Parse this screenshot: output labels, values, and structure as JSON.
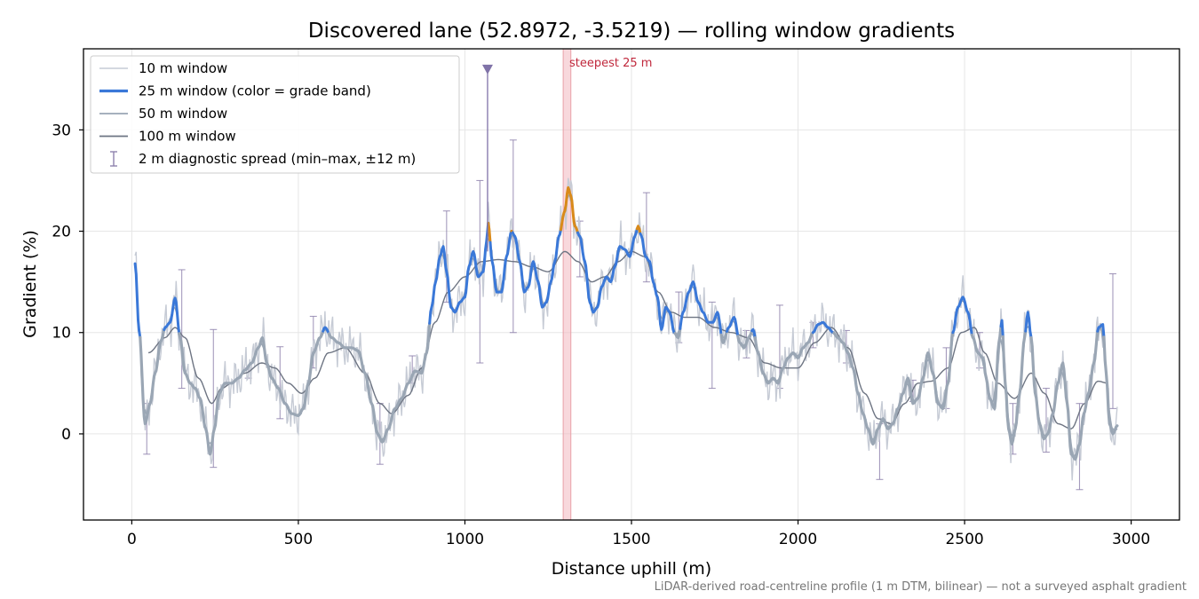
{
  "chart_data": {
    "type": "line",
    "title": "Discovered lane (52.8972, -3.5219) — rolling window gradients",
    "xlabel": "Distance uphill (m)",
    "ylabel": "Gradient (%)",
    "xlim": [
      -145,
      3145
    ],
    "ylim": [
      -8.5,
      38
    ],
    "x_ticks": [
      0,
      500,
      1000,
      1500,
      2000,
      2500,
      3000
    ],
    "x_tick_labels": [
      "0",
      "500",
      "1000",
      "1500",
      "2000",
      "2500",
      "3000"
    ],
    "y_ticks": [
      0,
      10,
      20,
      30
    ],
    "y_tick_labels": [
      "0",
      "10",
      "20",
      "30"
    ],
    "grid": true,
    "legend_position": "top-left",
    "legend": [
      {
        "label": "10 m window",
        "color": "#c6cbd5",
        "style": "line-thin"
      },
      {
        "label": "25 m window (color = grade band)",
        "color": "#3a78d8",
        "style": "line-thick"
      },
      {
        "label": "50 m window",
        "color": "#9aa6b4",
        "style": "line"
      },
      {
        "label": "100 m window",
        "color": "#6e7583",
        "style": "line"
      },
      {
        "label": "2 m diagnostic spread (min–max, ±12 m)",
        "color": "#8e82ad",
        "style": "errorbar"
      }
    ],
    "grade_band_colors": {
      "low": "#9aa6b4",
      "mid": "#3a78d8",
      "steep": "#d98a1a"
    },
    "grade_band_thresholds": [
      10,
      20
    ],
    "steepest_25m": {
      "label": "steepest 25 m",
      "x_start": 1295,
      "x_end": 1318,
      "color": "#f2b8bf"
    },
    "peak_marker": {
      "x": 1068,
      "y": 36,
      "color": "#8073a8"
    },
    "profile_25m": [
      [
        10,
        16.8
      ],
      [
        22,
        10.2
      ],
      [
        40,
        1.0
      ],
      [
        55,
        3.0
      ],
      [
        70,
        6.0
      ],
      [
        88,
        9.2
      ],
      [
        100,
        10.5
      ],
      [
        115,
        11.0
      ],
      [
        130,
        13.4
      ],
      [
        145,
        9.5
      ],
      [
        160,
        6.0
      ],
      [
        175,
        5.0
      ],
      [
        190,
        4.5
      ],
      [
        205,
        3.5
      ],
      [
        222,
        0.5
      ],
      [
        235,
        -2.0
      ],
      [
        248,
        0.5
      ],
      [
        262,
        4.0
      ],
      [
        280,
        5.0
      ],
      [
        300,
        5.0
      ],
      [
        320,
        5.5
      ],
      [
        340,
        6.3
      ],
      [
        360,
        7.0
      ],
      [
        380,
        8.5
      ],
      [
        392,
        9.5
      ],
      [
        405,
        7.0
      ],
      [
        420,
        5.5
      ],
      [
        440,
        4.5
      ],
      [
        460,
        3.0
      ],
      [
        480,
        2.0
      ],
      [
        500,
        1.8
      ],
      [
        515,
        2.5
      ],
      [
        530,
        5.0
      ],
      [
        545,
        8.0
      ],
      [
        565,
        9.5
      ],
      [
        580,
        10.5
      ],
      [
        600,
        9.5
      ],
      [
        620,
        9.0
      ],
      [
        640,
        8.5
      ],
      [
        660,
        8.5
      ],
      [
        680,
        8.2
      ],
      [
        700,
        6.0
      ],
      [
        720,
        3.0
      ],
      [
        738,
        0.0
      ],
      [
        752,
        -0.8
      ],
      [
        770,
        0.5
      ],
      [
        790,
        2.5
      ],
      [
        810,
        3.5
      ],
      [
        830,
        5.0
      ],
      [
        850,
        6.2
      ],
      [
        870,
        6.0
      ],
      [
        885,
        8.0
      ],
      [
        900,
        12.5
      ],
      [
        912,
        15.0
      ],
      [
        925,
        17.5
      ],
      [
        935,
        18.5
      ],
      [
        945,
        16.0
      ],
      [
        958,
        12.5
      ],
      [
        970,
        12.0
      ],
      [
        985,
        13.0
      ],
      [
        1000,
        13.5
      ],
      [
        1012,
        16.5
      ],
      [
        1025,
        18.0
      ],
      [
        1040,
        15.5
      ],
      [
        1055,
        16.0
      ],
      [
        1065,
        19.0
      ],
      [
        1070,
        20.8
      ],
      [
        1082,
        17.0
      ],
      [
        1095,
        14.0
      ],
      [
        1110,
        14.0
      ],
      [
        1125,
        17.5
      ],
      [
        1140,
        20.0
      ],
      [
        1150,
        19.5
      ],
      [
        1165,
        17.0
      ],
      [
        1178,
        14.0
      ],
      [
        1190,
        14.5
      ],
      [
        1205,
        17.0
      ],
      [
        1220,
        15.0
      ],
      [
        1232,
        12.5
      ],
      [
        1245,
        13.0
      ],
      [
        1258,
        15.0
      ],
      [
        1270,
        17.0
      ],
      [
        1282,
        19.5
      ],
      [
        1300,
        22.0
      ],
      [
        1310,
        24.3
      ],
      [
        1318,
        23.5
      ],
      [
        1330,
        20.5
      ],
      [
        1345,
        19.5
      ],
      [
        1360,
        17.0
      ],
      [
        1375,
        13.0
      ],
      [
        1385,
        12.0
      ],
      [
        1398,
        12.5
      ],
      [
        1410,
        14.5
      ],
      [
        1425,
        15.5
      ],
      [
        1438,
        15.0
      ],
      [
        1450,
        16.5
      ],
      [
        1465,
        18.5
      ],
      [
        1480,
        18.2
      ],
      [
        1495,
        17.5
      ],
      [
        1510,
        19.5
      ],
      [
        1520,
        20.5
      ],
      [
        1530,
        19.5
      ],
      [
        1542,
        17.5
      ],
      [
        1555,
        17.0
      ],
      [
        1565,
        15.0
      ],
      [
        1578,
        13.5
      ],
      [
        1590,
        10.3
      ],
      [
        1603,
        12.5
      ],
      [
        1615,
        12.0
      ],
      [
        1628,
        10.0
      ],
      [
        1640,
        9.5
      ],
      [
        1655,
        12.0
      ],
      [
        1672,
        14.0
      ],
      [
        1685,
        15.0
      ],
      [
        1700,
        13.0
      ],
      [
        1715,
        12.0
      ],
      [
        1730,
        11.0
      ],
      [
        1745,
        11.0
      ],
      [
        1758,
        12.0
      ],
      [
        1775,
        9.0
      ],
      [
        1792,
        10.5
      ],
      [
        1808,
        11.5
      ],
      [
        1825,
        9.0
      ],
      [
        1838,
        8.5
      ],
      [
        1852,
        9.5
      ],
      [
        1865,
        10.3
      ],
      [
        1880,
        8.0
      ],
      [
        1895,
        6.0
      ],
      [
        1910,
        5.0
      ],
      [
        1925,
        5.5
      ],
      [
        1940,
        5.0
      ],
      [
        1955,
        6.5
      ],
      [
        1970,
        7.5
      ],
      [
        1985,
        8.0
      ],
      [
        2000,
        7.5
      ],
      [
        2015,
        8.5
      ],
      [
        2030,
        9.0
      ],
      [
        2045,
        10.0
      ],
      [
        2060,
        10.8
      ],
      [
        2075,
        11.0
      ],
      [
        2090,
        10.5
      ],
      [
        2105,
        10.0
      ],
      [
        2120,
        9.5
      ],
      [
        2135,
        9.0
      ],
      [
        2150,
        8.0
      ],
      [
        2165,
        6.5
      ],
      [
        2180,
        4.0
      ],
      [
        2195,
        2.0
      ],
      [
        2210,
        0.5
      ],
      [
        2225,
        -1.0
      ],
      [
        2240,
        0.5
      ],
      [
        2255,
        1.5
      ],
      [
        2270,
        0.5
      ],
      [
        2285,
        1.0
      ],
      [
        2300,
        2.5
      ],
      [
        2315,
        4.0
      ],
      [
        2330,
        5.5
      ],
      [
        2345,
        3.0
      ],
      [
        2360,
        3.5
      ],
      [
        2375,
        5.5
      ],
      [
        2390,
        8.0
      ],
      [
        2405,
        6.0
      ],
      [
        2420,
        3.0
      ],
      [
        2435,
        2.5
      ],
      [
        2450,
        5.0
      ],
      [
        2465,
        10.0
      ],
      [
        2480,
        12.5
      ],
      [
        2495,
        13.5
      ],
      [
        2510,
        12.0
      ],
      [
        2525,
        9.5
      ],
      [
        2540,
        8.0
      ],
      [
        2555,
        7.5
      ],
      [
        2565,
        5.5
      ],
      [
        2575,
        3.5
      ],
      [
        2590,
        2.5
      ],
      [
        2603,
        9.0
      ],
      [
        2612,
        11.2
      ],
      [
        2622,
        5.0
      ],
      [
        2632,
        0.5
      ],
      [
        2642,
        -1.0
      ],
      [
        2652,
        0.5
      ],
      [
        2665,
        4.0
      ],
      [
        2680,
        9.5
      ],
      [
        2690,
        12.0
      ],
      [
        2700,
        9.5
      ],
      [
        2712,
        4.0
      ],
      [
        2725,
        1.0
      ],
      [
        2738,
        -0.5
      ],
      [
        2750,
        0.0
      ],
      [
        2765,
        2.0
      ],
      [
        2780,
        5.0
      ],
      [
        2795,
        7.0
      ],
      [
        2808,
        3.0
      ],
      [
        2820,
        -2.0
      ],
      [
        2832,
        -2.5
      ],
      [
        2845,
        -1.0
      ],
      [
        2858,
        2.0
      ],
      [
        2872,
        4.0
      ],
      [
        2888,
        7.0
      ],
      [
        2902,
        10.5
      ],
      [
        2915,
        10.8
      ],
      [
        2925,
        6.0
      ],
      [
        2935,
        1.0
      ],
      [
        2945,
        0.0
      ],
      [
        2958,
        0.8
      ]
    ],
    "profile_100m": [
      [
        50,
        8.0
      ],
      [
        100,
        9.5
      ],
      [
        130,
        10.5
      ],
      [
        160,
        9.5
      ],
      [
        200,
        5.5
      ],
      [
        240,
        3.0
      ],
      [
        270,
        4.5
      ],
      [
        300,
        5.0
      ],
      [
        340,
        6.0
      ],
      [
        390,
        7.0
      ],
      [
        430,
        6.5
      ],
      [
        470,
        5.0
      ],
      [
        510,
        4.0
      ],
      [
        550,
        5.5
      ],
      [
        590,
        8.0
      ],
      [
        640,
        8.5
      ],
      [
        700,
        6.0
      ],
      [
        745,
        3.0
      ],
      [
        780,
        2.0
      ],
      [
        830,
        3.8
      ],
      [
        870,
        6.5
      ],
      [
        910,
        11.0
      ],
      [
        950,
        14.0
      ],
      [
        1000,
        15.5
      ],
      [
        1050,
        17.0
      ],
      [
        1100,
        17.2
      ],
      [
        1150,
        17.0
      ],
      [
        1200,
        16.5
      ],
      [
        1250,
        16.0
      ],
      [
        1300,
        18.0
      ],
      [
        1340,
        17.0
      ],
      [
        1380,
        15.0
      ],
      [
        1420,
        15.5
      ],
      [
        1460,
        17.0
      ],
      [
        1500,
        18.0
      ],
      [
        1540,
        17.5
      ],
      [
        1580,
        14.0
      ],
      [
        1620,
        12.0
      ],
      [
        1660,
        11.5
      ],
      [
        1700,
        11.5
      ],
      [
        1750,
        10.5
      ],
      [
        1800,
        10.0
      ],
      [
        1850,
        9.5
      ],
      [
        1900,
        7.0
      ],
      [
        1950,
        6.5
      ],
      [
        2000,
        6.5
      ],
      [
        2050,
        9.0
      ],
      [
        2100,
        10.5
      ],
      [
        2150,
        8.5
      ],
      [
        2200,
        4.0
      ],
      [
        2240,
        1.5
      ],
      [
        2280,
        1.0
      ],
      [
        2320,
        3.0
      ],
      [
        2360,
        5.0
      ],
      [
        2400,
        5.2
      ],
      [
        2450,
        6.5
      ],
      [
        2490,
        10.0
      ],
      [
        2530,
        10.5
      ],
      [
        2560,
        8.0
      ],
      [
        2600,
        5.0
      ],
      [
        2650,
        3.5
      ],
      [
        2700,
        6.0
      ],
      [
        2740,
        4.0
      ],
      [
        2780,
        1.0
      ],
      [
        2820,
        0.5
      ],
      [
        2860,
        3.0
      ],
      [
        2900,
        5.2
      ],
      [
        2930,
        5.0
      ]
    ],
    "error_bars": [
      [
        45,
        -2.0,
        3.0
      ],
      [
        150,
        4.5,
        16.2
      ],
      [
        245,
        -3.3,
        10.3
      ],
      [
        350,
        5.5,
        6.5
      ],
      [
        445,
        1.5,
        8.6
      ],
      [
        545,
        6.5,
        11.6
      ],
      [
        745,
        -3.0,
        3.0
      ],
      [
        842,
        5.0,
        7.7
      ],
      [
        945,
        13.0,
        22.0
      ],
      [
        1045,
        7.0,
        25.0
      ],
      [
        1145,
        10.0,
        29.0
      ],
      [
        1345,
        15.5,
        21.0
      ],
      [
        1545,
        15.0,
        23.8
      ],
      [
        1642,
        9.0,
        14.0
      ],
      [
        1742,
        4.5,
        13.0
      ],
      [
        1845,
        7.5,
        10.2
      ],
      [
        1945,
        4.5,
        12.7
      ],
      [
        2045,
        8.5,
        11.0
      ],
      [
        2145,
        7.0,
        10.2
      ],
      [
        2245,
        -4.5,
        1.0
      ],
      [
        2345,
        3.2,
        5.3
      ],
      [
        2445,
        2.5,
        8.5
      ],
      [
        2545,
        6.5,
        10.0
      ],
      [
        2645,
        -2.0,
        3.0
      ],
      [
        2745,
        -1.8,
        4.5
      ],
      [
        2845,
        -5.5,
        3.0
      ],
      [
        2945,
        2.5,
        15.8
      ]
    ]
  },
  "annotations": {
    "steepest_label": "steepest 25 m",
    "footnote": "LiDAR-derived road-centreline profile (1 m DTM, bilinear) — not a surveyed asphalt gradient"
  }
}
